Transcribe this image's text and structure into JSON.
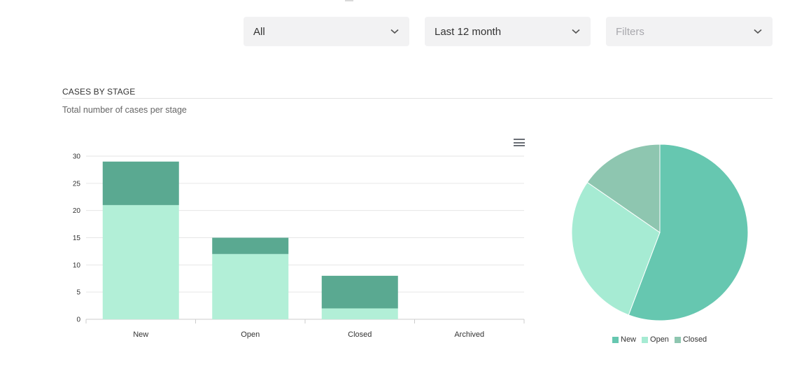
{
  "filters": {
    "scope": {
      "value": "All"
    },
    "period": {
      "value": "Last 12 month"
    },
    "filters": {
      "placeholder": "Filters"
    }
  },
  "section": {
    "title": "CASES BY STAGE",
    "subtitle": "Total number of cases per stage"
  },
  "colors": {
    "new": "#66c7b0",
    "open": "#a6ebd3",
    "closed": "#8ec6b0",
    "bar_light": "#b2efd7",
    "bar_dark": "#5aa991"
  },
  "chart_data": [
    {
      "type": "bar",
      "stacked": true,
      "categories": [
        "New",
        "Open",
        "Closed",
        "Archived"
      ],
      "series": [
        {
          "values": [
            21,
            12,
            2,
            0
          ],
          "color": "#b2efd7"
        },
        {
          "values": [
            8,
            3,
            6,
            0
          ],
          "color": "#5aa991"
        }
      ],
      "yticks": [
        0,
        5,
        10,
        15,
        20,
        25,
        30
      ],
      "ylim": [
        0,
        30
      ],
      "grid": true
    },
    {
      "type": "pie",
      "labels": [
        "New",
        "Open",
        "Closed"
      ],
      "values": [
        29,
        15,
        8
      ],
      "colors": [
        "#66c7b0",
        "#a6ebd3",
        "#8ec6b0"
      ],
      "legend": "bottom"
    }
  ]
}
